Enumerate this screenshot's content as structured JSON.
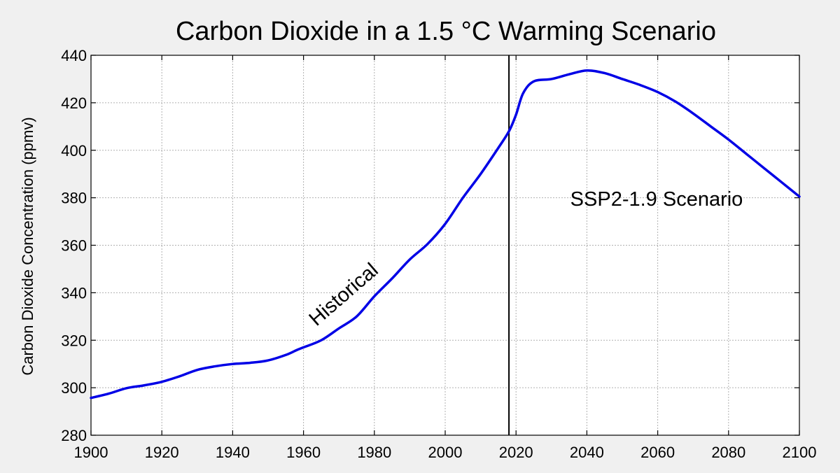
{
  "chart_data": {
    "type": "line",
    "title": "Carbon Dioxide in a 1.5 °C Warming Scenario",
    "xlabel": "",
    "ylabel": "Carbon Dioxide Concentration (ppmv)",
    "xlim": [
      1900,
      2100
    ],
    "ylim": [
      280,
      440
    ],
    "xticks": [
      1900,
      1920,
      1940,
      1960,
      1980,
      2000,
      2020,
      2040,
      2060,
      2080,
      2100
    ],
    "yticks": [
      280,
      300,
      320,
      340,
      360,
      380,
      400,
      420,
      440
    ],
    "grid": true,
    "divider_year": 2018,
    "annotations": {
      "historical": "Historical",
      "scenario": "SSP2-1.9 Scenario"
    },
    "series": [
      {
        "name": "CO2",
        "color": "#0000e6",
        "x": [
          1900,
          1905,
          1910,
          1915,
          1920,
          1925,
          1930,
          1935,
          1940,
          1945,
          1950,
          1955,
          1958,
          1960,
          1965,
          1970,
          1975,
          1980,
          1985,
          1990,
          1995,
          2000,
          2005,
          2010,
          2015,
          2018,
          2020,
          2022,
          2025,
          2030,
          2035,
          2040,
          2045,
          2050,
          2055,
          2060,
          2065,
          2070,
          2075,
          2080,
          2085,
          2090,
          2095,
          2100
        ],
        "y": [
          295.7,
          297.5,
          299.8,
          301,
          302.5,
          304.8,
          307.5,
          309,
          310,
          310.5,
          311.5,
          313.8,
          315.8,
          317,
          320,
          325,
          330,
          338.5,
          346,
          354,
          360.5,
          369,
          380,
          390,
          401,
          408,
          415,
          424,
          429,
          430,
          432,
          433.6,
          432.5,
          430,
          427.5,
          424.5,
          420.5,
          415.5,
          410,
          404.5,
          398.5,
          392.5,
          386.5,
          380.5
        ]
      }
    ]
  }
}
